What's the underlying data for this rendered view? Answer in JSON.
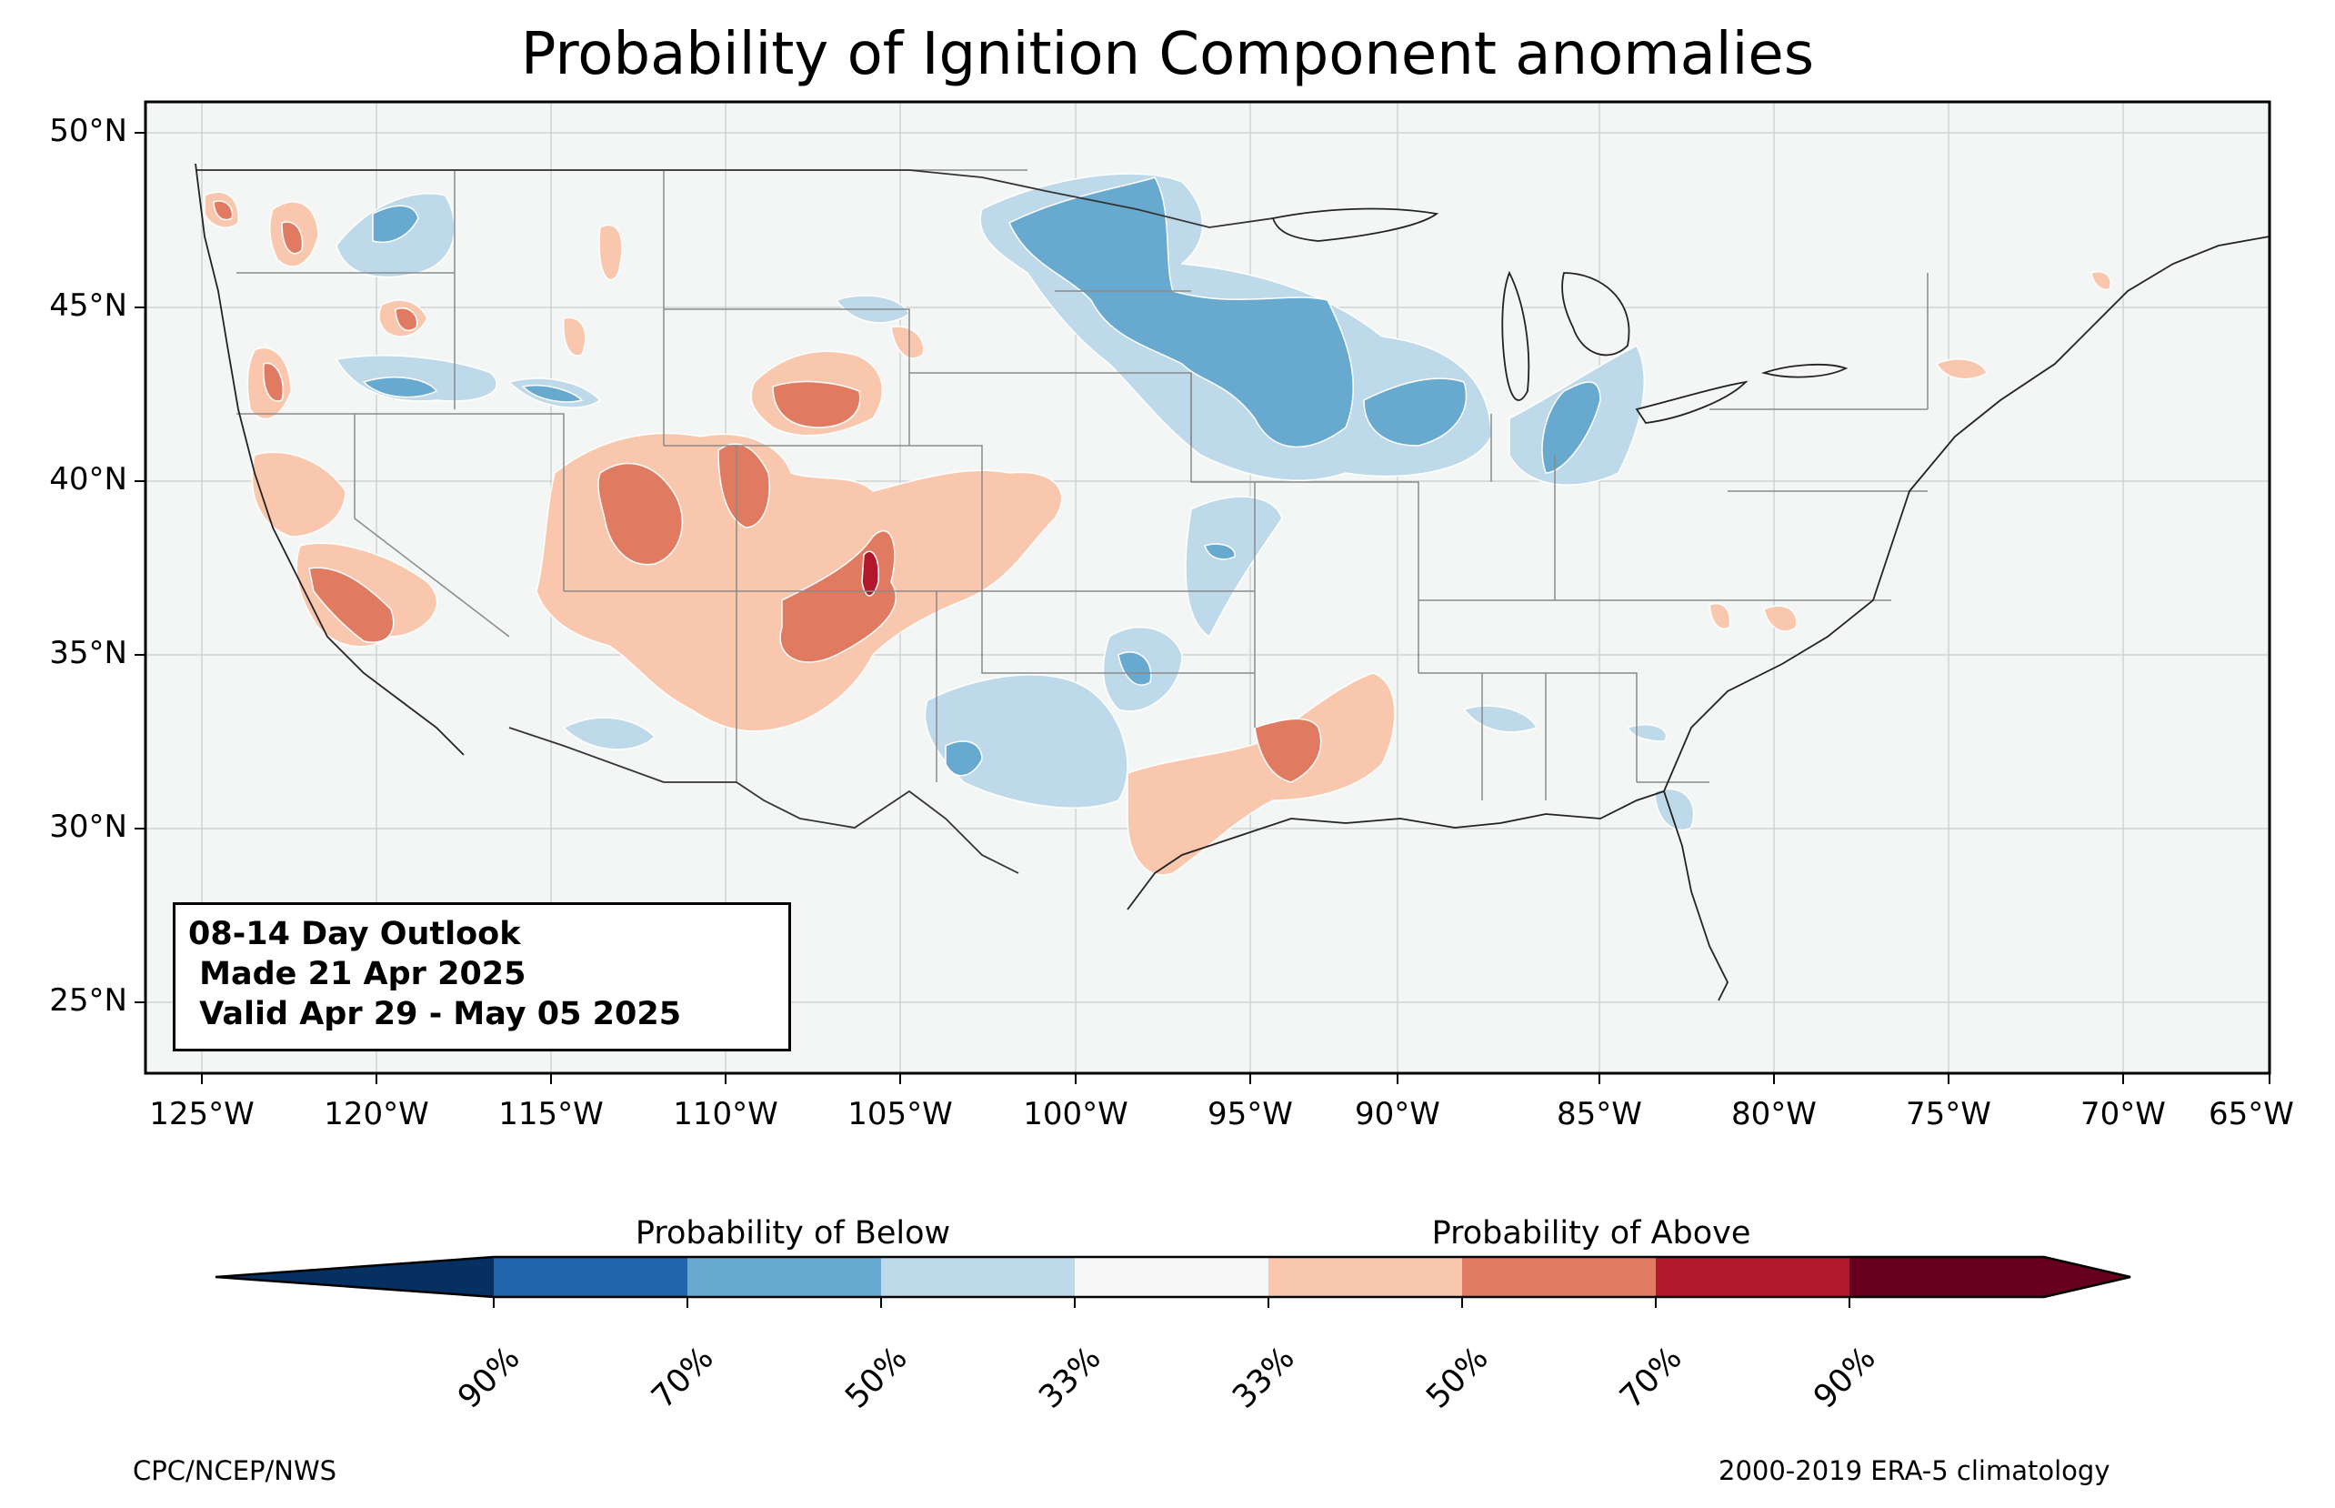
{
  "title": "Probability of Ignition Component anomalies",
  "info_box": {
    "line1": "08-14 Day Outlook",
    "line2": " Made 21 Apr 2025",
    "line3": " Valid Apr 29 - May 05 2025"
  },
  "axes": {
    "lat_labels": [
      "50°N",
      "45°N",
      "40°N",
      "35°N",
      "30°N",
      "25°N"
    ],
    "lon_labels": [
      "125°W",
      "120°W",
      "115°W",
      "110°W",
      "105°W",
      "100°W",
      "95°W",
      "90°W",
      "85°W",
      "80°W",
      "75°W",
      "70°W",
      "65°W"
    ]
  },
  "colorbar": {
    "below_label": "Probability of Below",
    "above_label": "Probability of Above",
    "tick_labels": [
      "90%",
      "70%",
      "50%",
      "33%",
      "33%",
      "50%",
      "70%",
      "90%"
    ],
    "colors": [
      "#053061",
      "#2166ac",
      "#67a9cf",
      "#bdd9ea",
      "#f7f7f7",
      "#f9c7ad",
      "#e07b62",
      "#b2182b",
      "#67001f"
    ]
  },
  "credits": {
    "left": "CPC/NCEP/NWS",
    "right": "2000-2019 ERA-5 climatology"
  },
  "colors": {
    "map_background": "#f4f6f6",
    "below_33": "#bdd9ea",
    "below_50": "#67a9cf",
    "above_33": "#f9c7ad",
    "above_50": "#e07b62",
    "above_70": "#b2182b"
  }
}
